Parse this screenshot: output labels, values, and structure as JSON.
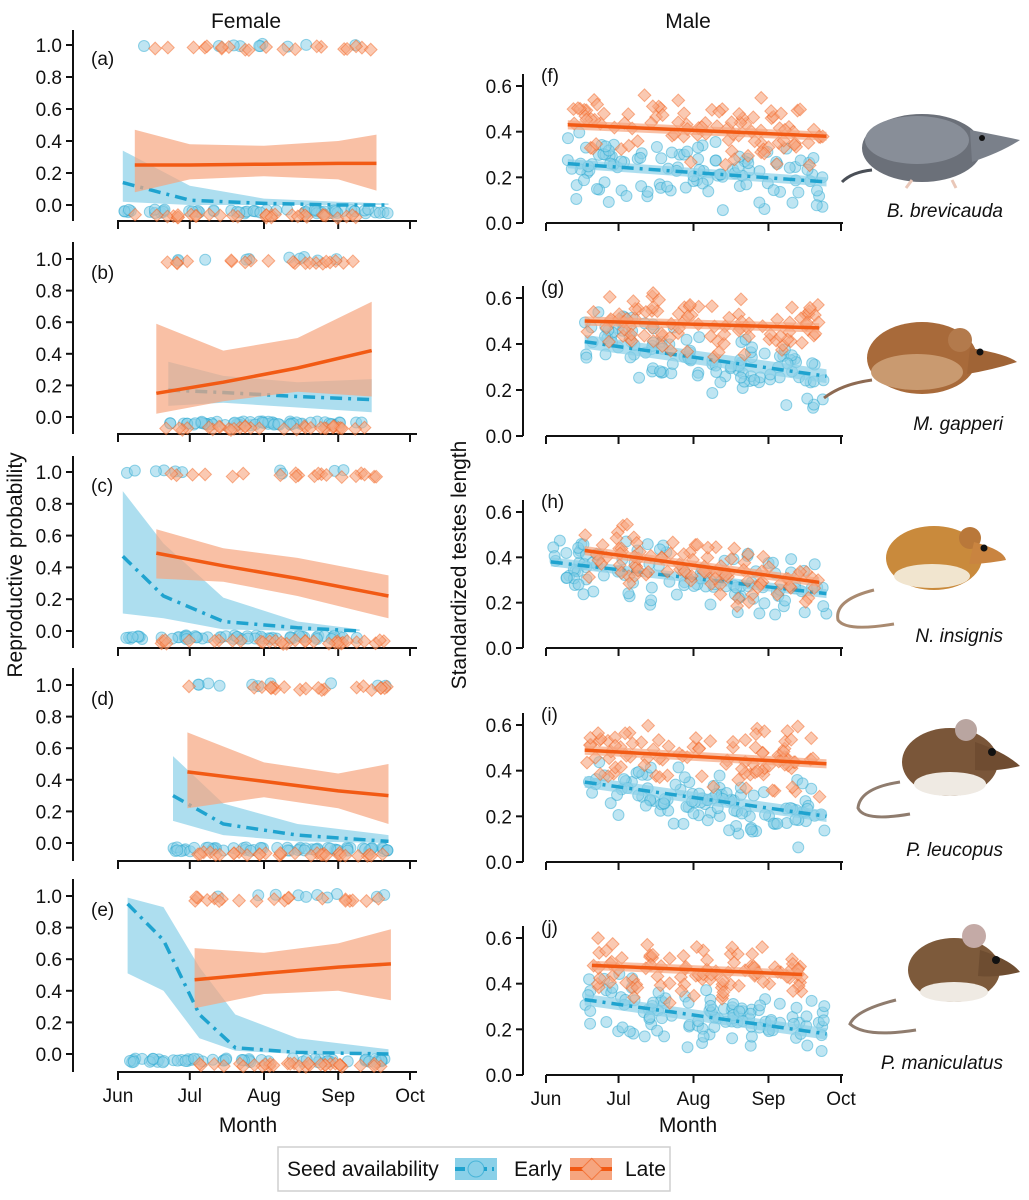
{
  "figure": {
    "left_column_title": "Female",
    "right_column_title": "Male",
    "left_ylabel": "Reproductive probability",
    "right_ylabel": "Standardized testes length",
    "xlabel": "Month",
    "month_ticks": [
      "Jun",
      "Jul",
      "Aug",
      "Sep",
      "Oct"
    ],
    "legend": {
      "title": "Seed availability",
      "early": "Early",
      "late": "Late"
    },
    "colors": {
      "early": "#1fa3cf",
      "early_band": "#8ad0e8",
      "late": "#f25a14",
      "late_band": "#f6a57f",
      "axis": "#111111"
    },
    "icon_names": [
      "shrew-illustration",
      "vole-illustration",
      "jumping-mouse-illustration",
      "white-footed-mouse-illustration",
      "deer-mouse-illustration"
    ]
  },
  "chart_data": [
    {
      "panel": "(a)",
      "type": "line",
      "side": "female",
      "species": "B. brevicauda",
      "xlabel": "Month",
      "ylabel": "Reproductive probability",
      "ylim": [
        0,
        1
      ],
      "yticks": [
        "0.0",
        "0.2",
        "0.4",
        "0.6",
        "0.8",
        "1.0"
      ],
      "series": [
        {
          "name": "Early",
          "x": [
            "Jun 3",
            "Jul 1",
            "Aug 1",
            "Sep 1",
            "Sep 22"
          ],
          "values": [
            0.14,
            0.03,
            0.01,
            0.0,
            0.0
          ],
          "band_low": [
            0.02,
            0.0,
            0.0,
            0.0,
            0.0
          ],
          "band_high": [
            0.34,
            0.12,
            0.04,
            0.02,
            0.01
          ]
        },
        {
          "name": "Late",
          "x": [
            "Jun 8",
            "Jul 1",
            "Aug 1",
            "Sep 1",
            "Sep 17"
          ],
          "values": [
            0.25,
            0.25,
            0.255,
            0.26,
            0.26
          ],
          "band_low": [
            0.08,
            0.16,
            0.18,
            0.16,
            0.09
          ],
          "band_high": [
            0.47,
            0.38,
            0.37,
            0.4,
            0.44
          ]
        }
      ]
    },
    {
      "panel": "(b)",
      "type": "line",
      "side": "female",
      "species": "M. gapperi",
      "xlabel": "Month",
      "ylabel": "Reproductive probability",
      "ylim": [
        0,
        1
      ],
      "yticks": [
        "0.0",
        "0.2",
        "0.4",
        "0.6",
        "0.8",
        "1.0"
      ],
      "series": [
        {
          "name": "Early",
          "x": [
            "Jun 22",
            "Jul 15",
            "Aug 15",
            "Sep 15"
          ],
          "values": [
            0.17,
            0.155,
            0.13,
            0.11
          ],
          "band_low": [
            0.07,
            0.09,
            0.06,
            0.03
          ],
          "band_high": [
            0.35,
            0.26,
            0.22,
            0.24
          ]
        },
        {
          "name": "Late",
          "x": [
            "Jun 17",
            "Jul 15",
            "Aug 15",
            "Sep 15"
          ],
          "values": [
            0.15,
            0.22,
            0.31,
            0.42
          ],
          "band_low": [
            0.02,
            0.1,
            0.16,
            0.13
          ],
          "band_high": [
            0.59,
            0.42,
            0.5,
            0.73
          ]
        }
      ]
    },
    {
      "panel": "(c)",
      "type": "line",
      "side": "female",
      "species": "N. insignis",
      "xlabel": "Month",
      "ylabel": "Reproductive probability",
      "ylim": [
        0,
        1
      ],
      "yticks": [
        "0.0",
        "0.2",
        "0.4",
        "0.6",
        "0.8",
        "1.0"
      ],
      "series": [
        {
          "name": "Early",
          "x": [
            "Jun 3",
            "Jun 20",
            "Jul 15",
            "Aug 15",
            "Sep 10"
          ],
          "values": [
            0.47,
            0.22,
            0.06,
            0.02,
            0.0
          ],
          "band_low": [
            0.11,
            0.08,
            0.01,
            0.0,
            0.0
          ],
          "band_high": [
            0.88,
            0.55,
            0.21,
            0.06,
            0.01
          ]
        },
        {
          "name": "Late",
          "x": [
            "Jun 17",
            "Jul 15",
            "Aug 15",
            "Sep 22"
          ],
          "values": [
            0.49,
            0.41,
            0.33,
            0.22
          ],
          "band_low": [
            0.33,
            0.31,
            0.22,
            0.08
          ],
          "band_high": [
            0.64,
            0.52,
            0.46,
            0.35
          ]
        }
      ]
    },
    {
      "panel": "(d)",
      "type": "line",
      "side": "female",
      "species": "P. leucopus",
      "xlabel": "Month",
      "ylabel": "Reproductive probability",
      "ylim": [
        0,
        1
      ],
      "yticks": [
        "0.0",
        "0.2",
        "0.4",
        "0.6",
        "0.8",
        "1.0"
      ],
      "series": [
        {
          "name": "Early",
          "x": [
            "Jun 24",
            "Jul 15",
            "Aug 15",
            "Sep 22"
          ],
          "values": [
            0.3,
            0.12,
            0.05,
            0.01
          ],
          "band_low": [
            0.14,
            0.05,
            0.01,
            0.0
          ],
          "band_high": [
            0.55,
            0.25,
            0.12,
            0.05
          ]
        },
        {
          "name": "Late",
          "x": [
            "Jun 30",
            "Aug 1",
            "Sep 1",
            "Sep 22"
          ],
          "values": [
            0.45,
            0.39,
            0.33,
            0.3
          ],
          "band_low": [
            0.22,
            0.29,
            0.22,
            0.12
          ],
          "band_high": [
            0.7,
            0.51,
            0.44,
            0.5
          ]
        }
      ]
    },
    {
      "panel": "(e)",
      "type": "line",
      "side": "female",
      "species": "P. maniculatus",
      "xlabel": "Month",
      "ylabel": "Reproductive probability",
      "ylim": [
        0,
        1
      ],
      "yticks": [
        "0.0",
        "0.2",
        "0.4",
        "0.6",
        "0.8",
        "1.0"
      ],
      "series": [
        {
          "name": "Early",
          "x": [
            "Jun 5",
            "Jun 20",
            "Jul 5",
            "Jul 20",
            "Aug 15",
            "Sep 22"
          ],
          "values": [
            0.95,
            0.72,
            0.25,
            0.04,
            0.01,
            0.0
          ],
          "band_low": [
            0.51,
            0.4,
            0.1,
            0.02,
            0.0,
            0.0
          ],
          "band_high": [
            0.99,
            0.93,
            0.55,
            0.25,
            0.1,
            0.03
          ]
        },
        {
          "name": "Late",
          "x": [
            "Jul 3",
            "Aug 1",
            "Sep 1",
            "Sep 23"
          ],
          "values": [
            0.47,
            0.51,
            0.55,
            0.57
          ],
          "band_low": [
            0.29,
            0.38,
            0.4,
            0.34
          ],
          "band_high": [
            0.67,
            0.64,
            0.7,
            0.79
          ]
        }
      ]
    },
    {
      "panel": "(f)",
      "type": "scatter",
      "side": "male",
      "species": "B. brevicauda",
      "xlabel": "Month",
      "ylabel": "Standardized testes length",
      "ylim": [
        0,
        0.65
      ],
      "yticks": [
        "0.0",
        "0.2",
        "0.4",
        "0.6"
      ],
      "series": [
        {
          "name": "Early",
          "x": [
            "Jun 10",
            "Sep 25"
          ],
          "values": [
            0.26,
            0.18
          ],
          "band_halfwidth": 0.02
        },
        {
          "name": "Late",
          "x": [
            "Jun 10",
            "Sep 25"
          ],
          "values": [
            0.43,
            0.38
          ],
          "band_halfwidth": 0.02
        }
      ]
    },
    {
      "panel": "(g)",
      "type": "scatter",
      "side": "male",
      "species": "M. gapperi",
      "xlabel": "Month",
      "ylabel": "Standardized testes length",
      "ylim": [
        0,
        0.75
      ],
      "yticks": [
        "0.0",
        "0.2",
        "0.4",
        "0.6"
      ],
      "series": [
        {
          "name": "Early",
          "x": [
            "Jun 17",
            "Sep 25"
          ],
          "values": [
            0.41,
            0.26
          ],
          "band_halfwidth": 0.03
        },
        {
          "name": "Late",
          "x": [
            "Jun 17",
            "Sep 22"
          ],
          "values": [
            0.5,
            0.47
          ],
          "band_halfwidth": 0.02
        }
      ]
    },
    {
      "panel": "(h)",
      "type": "scatter",
      "side": "male",
      "species": "N. insignis",
      "xlabel": "Month",
      "ylabel": "Standardized testes length",
      "ylim": [
        0,
        0.65
      ],
      "yticks": [
        "0.0",
        "0.2",
        "0.4",
        "0.6"
      ],
      "series": [
        {
          "name": "Early",
          "x": [
            "Jun 3",
            "Sep 25"
          ],
          "values": [
            0.38,
            0.24
          ],
          "band_halfwidth": 0.02
        },
        {
          "name": "Late",
          "x": [
            "Jun 17",
            "Sep 22"
          ],
          "values": [
            0.43,
            0.29
          ],
          "band_halfwidth": 0.02
        }
      ]
    },
    {
      "panel": "(i)",
      "type": "scatter",
      "side": "male",
      "species": "P. leucopus",
      "xlabel": "Month",
      "ylabel": "Standardized testes length",
      "ylim": [
        0,
        0.65
      ],
      "yticks": [
        "0.0",
        "0.2",
        "0.4",
        "0.6"
      ],
      "series": [
        {
          "name": "Early",
          "x": [
            "Jun 17",
            "Sep 25"
          ],
          "values": [
            0.35,
            0.2
          ],
          "band_halfwidth": 0.025
        },
        {
          "name": "Late",
          "x": [
            "Jun 17",
            "Sep 25"
          ],
          "values": [
            0.49,
            0.43
          ],
          "band_halfwidth": 0.02
        }
      ]
    },
    {
      "panel": "(j)",
      "type": "scatter",
      "side": "male",
      "species": "P. maniculatus",
      "xlabel": "Month",
      "ylabel": "Standardized testes length",
      "ylim": [
        0,
        0.67
      ],
      "yticks": [
        "0.0",
        "0.2",
        "0.4",
        "0.6"
      ],
      "series": [
        {
          "name": "Early",
          "x": [
            "Jun 17",
            "Sep 25"
          ],
          "values": [
            0.33,
            0.18
          ],
          "band_halfwidth": 0.025
        },
        {
          "name": "Late",
          "x": [
            "Jun 20",
            "Sep 15"
          ],
          "values": [
            0.48,
            0.44
          ],
          "band_halfwidth": 0.02
        }
      ]
    }
  ]
}
